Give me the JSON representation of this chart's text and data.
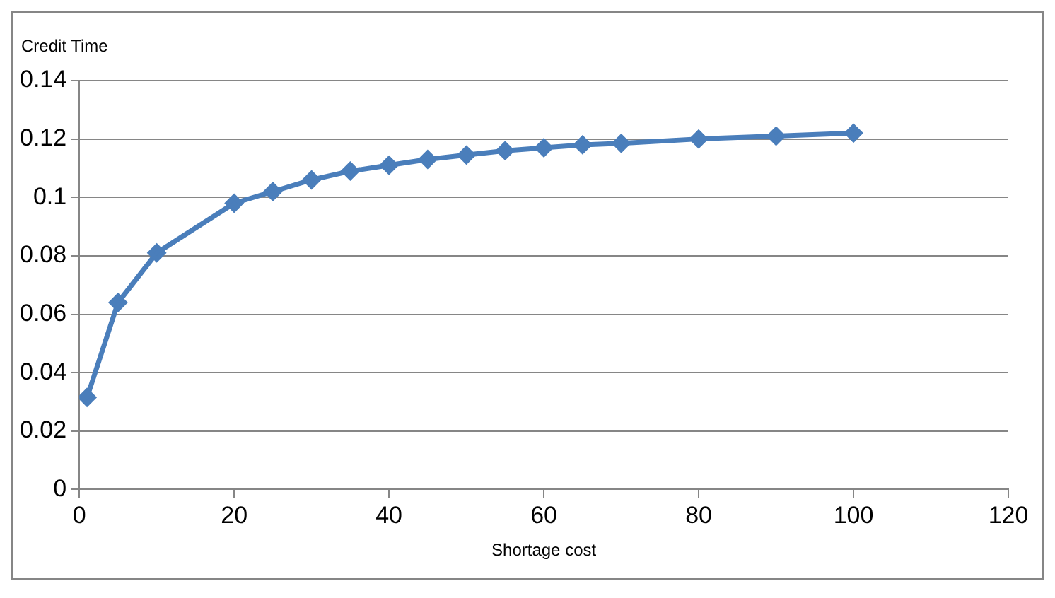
{
  "chart_data": {
    "type": "line",
    "xlabel": "Shortage cost",
    "ylabel": "Credit Time",
    "x": [
      1,
      5,
      10,
      20,
      25,
      30,
      35,
      40,
      45,
      50,
      55,
      60,
      65,
      70,
      80,
      90,
      100
    ],
    "series": [
      {
        "color": "#4a7ebb",
        "values": [
          0.0315,
          0.064,
          0.081,
          0.098,
          0.102,
          0.106,
          0.109,
          0.111,
          0.113,
          0.1145,
          0.116,
          0.117,
          0.118,
          0.1185,
          0.12,
          0.121,
          0.122
        ]
      }
    ],
    "xlim": [
      0,
      120
    ],
    "xticks": [
      0,
      20,
      40,
      60,
      80,
      100,
      120
    ],
    "ylim": [
      0,
      0.14
    ],
    "yticks": [
      0,
      0.02,
      0.04,
      0.06,
      0.08,
      0.1,
      0.12,
      0.14
    ],
    "grid": "y",
    "marker": "diamond",
    "legend": false
  }
}
